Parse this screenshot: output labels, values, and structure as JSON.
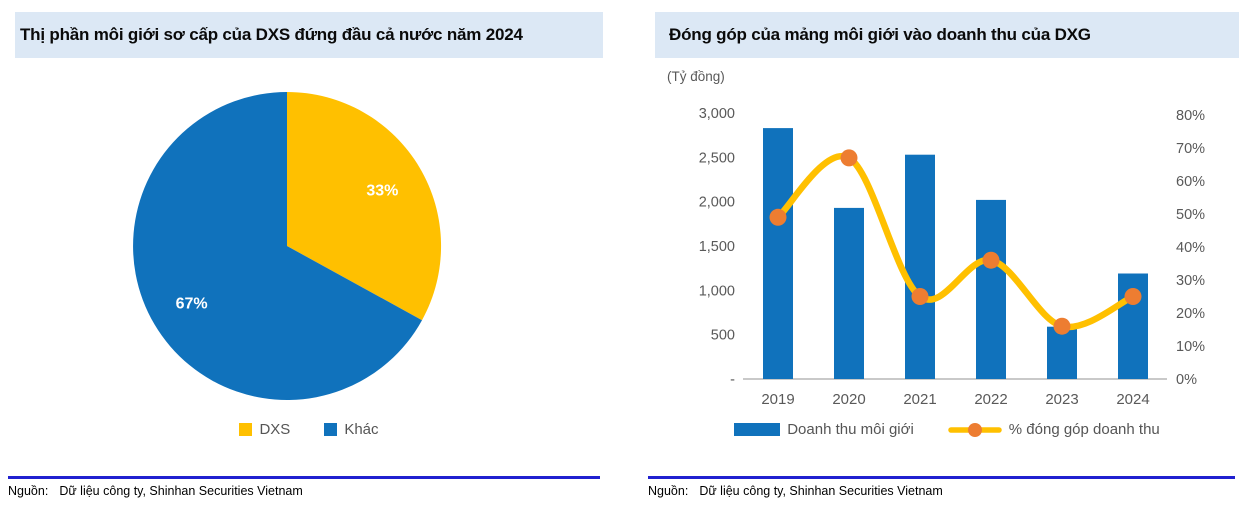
{
  "colors": {
    "band_bg": "#DCE8F5",
    "title_text": "#0A0A0A",
    "rule_blue": "#2020D0",
    "axis_text": "#595959",
    "baseline_gray": "#C9C9C9",
    "blue": "#1072BC",
    "yellow": "#FFC000",
    "orange": "#ED7D31"
  },
  "panels": {
    "left": {
      "title": "Thị phần môi giới sơ cấp của DXS đứng đầu cả nước năm 2024",
      "source": {
        "label": "Nguồn:",
        "text": "Dữ liệu công ty, Shinhan Securities Vietnam"
      }
    },
    "right": {
      "title": "Đóng góp của mảng môi giới vào doanh thu của DXG",
      "source": {
        "label": "Nguồn:",
        "text": "Dữ liệu công ty, Shinhan Securities Vietnam"
      }
    }
  },
  "chart_data": [
    {
      "type": "pie",
      "title": "Thị phần môi giới sơ cấp của DXS đứng đầu cả nước năm 2024",
      "start": "12-oclock",
      "direction": "clockwise",
      "legend_position": "bottom",
      "slices": [
        {
          "label": "DXS",
          "value": 33,
          "data_label": "33%",
          "color": "#FFC000"
        },
        {
          "label": "Khác",
          "value": 67,
          "data_label": "67%",
          "color": "#1072BC"
        }
      ]
    },
    {
      "type": "bar+line",
      "title": "Đóng góp của mảng môi giới vào doanh thu của DXG",
      "categories": [
        "2019",
        "2020",
        "2021",
        "2022",
        "2023",
        "2024"
      ],
      "series": [
        {
          "name": "Doanh thu môi giới",
          "type": "bar",
          "axis": "left",
          "color": "#1072BC",
          "values": [
            2830,
            1930,
            2530,
            2020,
            590,
            1190
          ]
        },
        {
          "name": "% đóng góp doanh thu",
          "type": "line",
          "axis": "right",
          "color": "#FFC000",
          "marker_color": "#ED7D31",
          "values": [
            49,
            67,
            25,
            36,
            16,
            25
          ]
        }
      ],
      "left_axis": {
        "title": "(Tỷ đồng)",
        "min": 0,
        "max": 3000,
        "step": 500,
        "tick_labels": [
          "3,000",
          "2,500",
          "2,000",
          "1,500",
          "1,000",
          "500",
          "-"
        ]
      },
      "right_axis": {
        "min": 0,
        "max": 80,
        "step": 10,
        "tick_labels": [
          "80%",
          "70%",
          "60%",
          "50%",
          "40%",
          "30%",
          "20%",
          "10%",
          "0%"
        ]
      },
      "grid": false,
      "legend_position": "bottom"
    }
  ]
}
